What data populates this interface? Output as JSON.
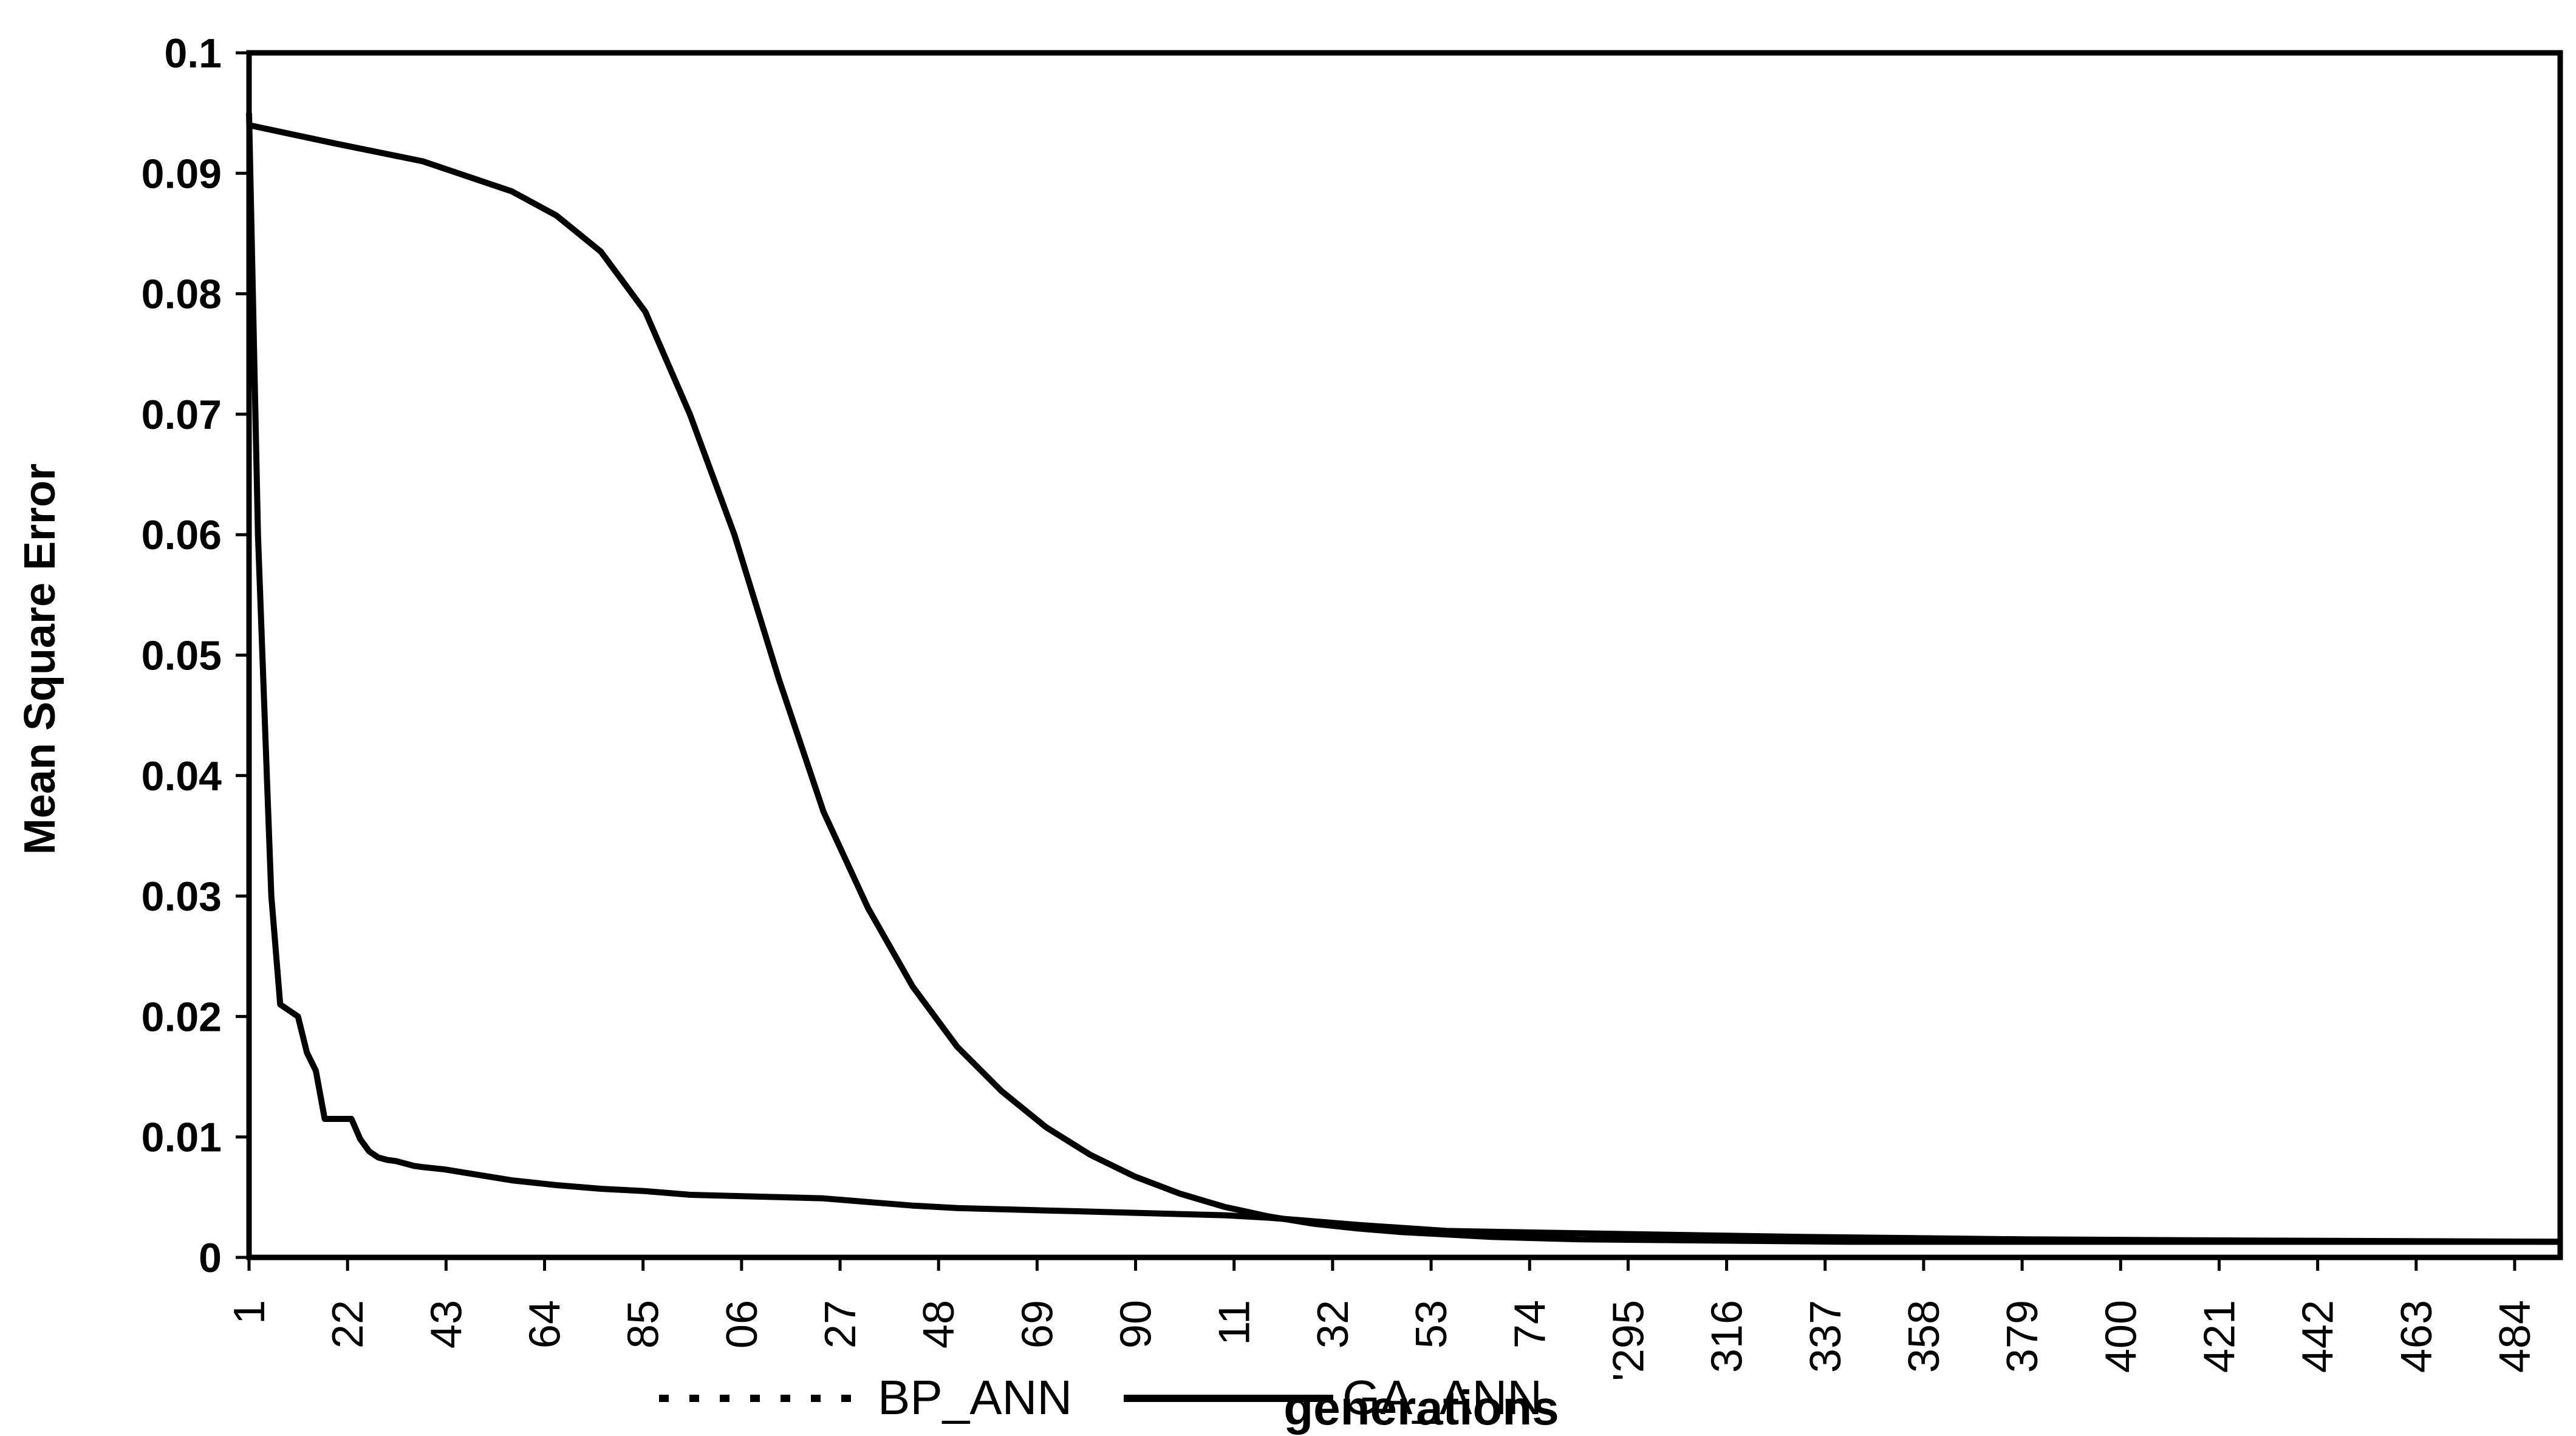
{
  "chart_data": {
    "type": "line",
    "title": "",
    "xlabel": "generations",
    "ylabel": "Mean Square Error",
    "ylim": [
      0,
      0.1
    ],
    "xlim": [
      1,
      520
    ],
    "y_ticks": [
      "0",
      "0.01",
      "0.02",
      "0.03",
      "0.04",
      "0.05",
      "0.06",
      "0.07",
      "0.08",
      "0.09",
      "0.1"
    ],
    "x_tick_labels": [
      "1",
      "22",
      "43",
      "64",
      "85",
      "06",
      "27",
      "48",
      "69",
      "90",
      "11",
      "32",
      "53",
      "74",
      "'295",
      "316",
      "337",
      "358",
      "379",
      "400",
      "421",
      "442",
      "463",
      "484"
    ],
    "legend": {
      "position": "bottom",
      "entries": [
        "BP_ANN",
        "GA_ANN"
      ]
    },
    "grid": false,
    "series": [
      {
        "name": "BP_ANN",
        "style": "solid",
        "x": [
          1,
          3,
          5,
          6,
          8,
          10,
          12,
          14,
          16,
          18,
          20,
          22,
          24,
          26,
          28,
          30,
          32,
          34,
          36,
          38,
          40,
          45,
          50,
          60,
          70,
          80,
          90,
          100,
          110,
          120,
          130,
          140,
          150,
          160,
          170,
          180,
          190,
          200,
          220,
          230,
          240,
          250,
          270,
          300,
          350,
          400,
          450,
          520
        ],
        "values": [
          0.095,
          0.06,
          0.04,
          0.03,
          0.021,
          0.0205,
          0.02,
          0.017,
          0.0155,
          0.0115,
          0.0115,
          0.0115,
          0.0115,
          0.0098,
          0.0088,
          0.0083,
          0.0081,
          0.008,
          0.0078,
          0.0076,
          0.0075,
          0.0073,
          0.007,
          0.0064,
          0.006,
          0.0057,
          0.0055,
          0.0052,
          0.0051,
          0.005,
          0.0049,
          0.0046,
          0.0043,
          0.0041,
          0.004,
          0.0039,
          0.0038,
          0.0037,
          0.0035,
          0.0033,
          0.003,
          0.0027,
          0.0022,
          0.002,
          0.0017,
          0.0015,
          0.0014,
          0.0013
        ]
      },
      {
        "name": "GA_ANN",
        "style": "solid",
        "x": [
          1,
          20,
          40,
          60,
          70,
          80,
          90,
          100,
          110,
          120,
          130,
          140,
          150,
          160,
          170,
          180,
          190,
          200,
          210,
          220,
          230,
          240,
          250,
          260,
          270,
          280,
          300,
          330,
          360,
          400,
          450,
          520
        ],
        "values": [
          0.094,
          0.0925,
          0.091,
          0.0885,
          0.0865,
          0.0835,
          0.0785,
          0.07,
          0.06,
          0.048,
          0.037,
          0.029,
          0.0225,
          0.0175,
          0.0138,
          0.0108,
          0.0085,
          0.0067,
          0.0053,
          0.0042,
          0.0034,
          0.0028,
          0.0024,
          0.0021,
          0.0019,
          0.0017,
          0.0015,
          0.0014,
          0.0013,
          0.0013,
          0.0013,
          0.0013
        ]
      }
    ]
  }
}
